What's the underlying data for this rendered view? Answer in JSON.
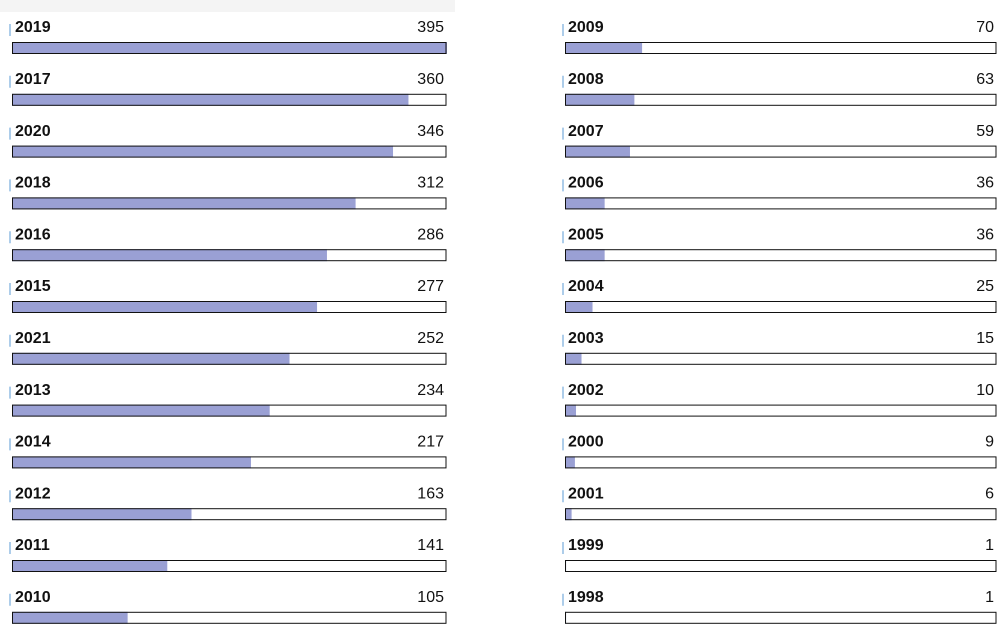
{
  "columns": [
    {
      "items": [
        {
          "label": "2019",
          "count": 395
        },
        {
          "label": "2017",
          "count": 360
        },
        {
          "label": "2020",
          "count": 346
        },
        {
          "label": "2018",
          "count": 312
        },
        {
          "label": "2016",
          "count": 286
        },
        {
          "label": "2015",
          "count": 277
        },
        {
          "label": "2021",
          "count": 252
        },
        {
          "label": "2013",
          "count": 234
        },
        {
          "label": "2014",
          "count": 217
        },
        {
          "label": "2012",
          "count": 163
        },
        {
          "label": "2011",
          "count": 141
        },
        {
          "label": "2010",
          "count": 105
        }
      ]
    },
    {
      "items": [
        {
          "label": "2009",
          "count": 70
        },
        {
          "label": "2008",
          "count": 63
        },
        {
          "label": "2007",
          "count": 59
        },
        {
          "label": "2006",
          "count": 36
        },
        {
          "label": "2005",
          "count": 36
        },
        {
          "label": "2004",
          "count": 25
        },
        {
          "label": "2003",
          "count": 15
        },
        {
          "label": "2002",
          "count": 10
        },
        {
          "label": "2000",
          "count": 9
        },
        {
          "label": "2001",
          "count": 6
        },
        {
          "label": "1999",
          "count": 1
        },
        {
          "label": "1998",
          "count": 1
        }
      ]
    }
  ]
}
